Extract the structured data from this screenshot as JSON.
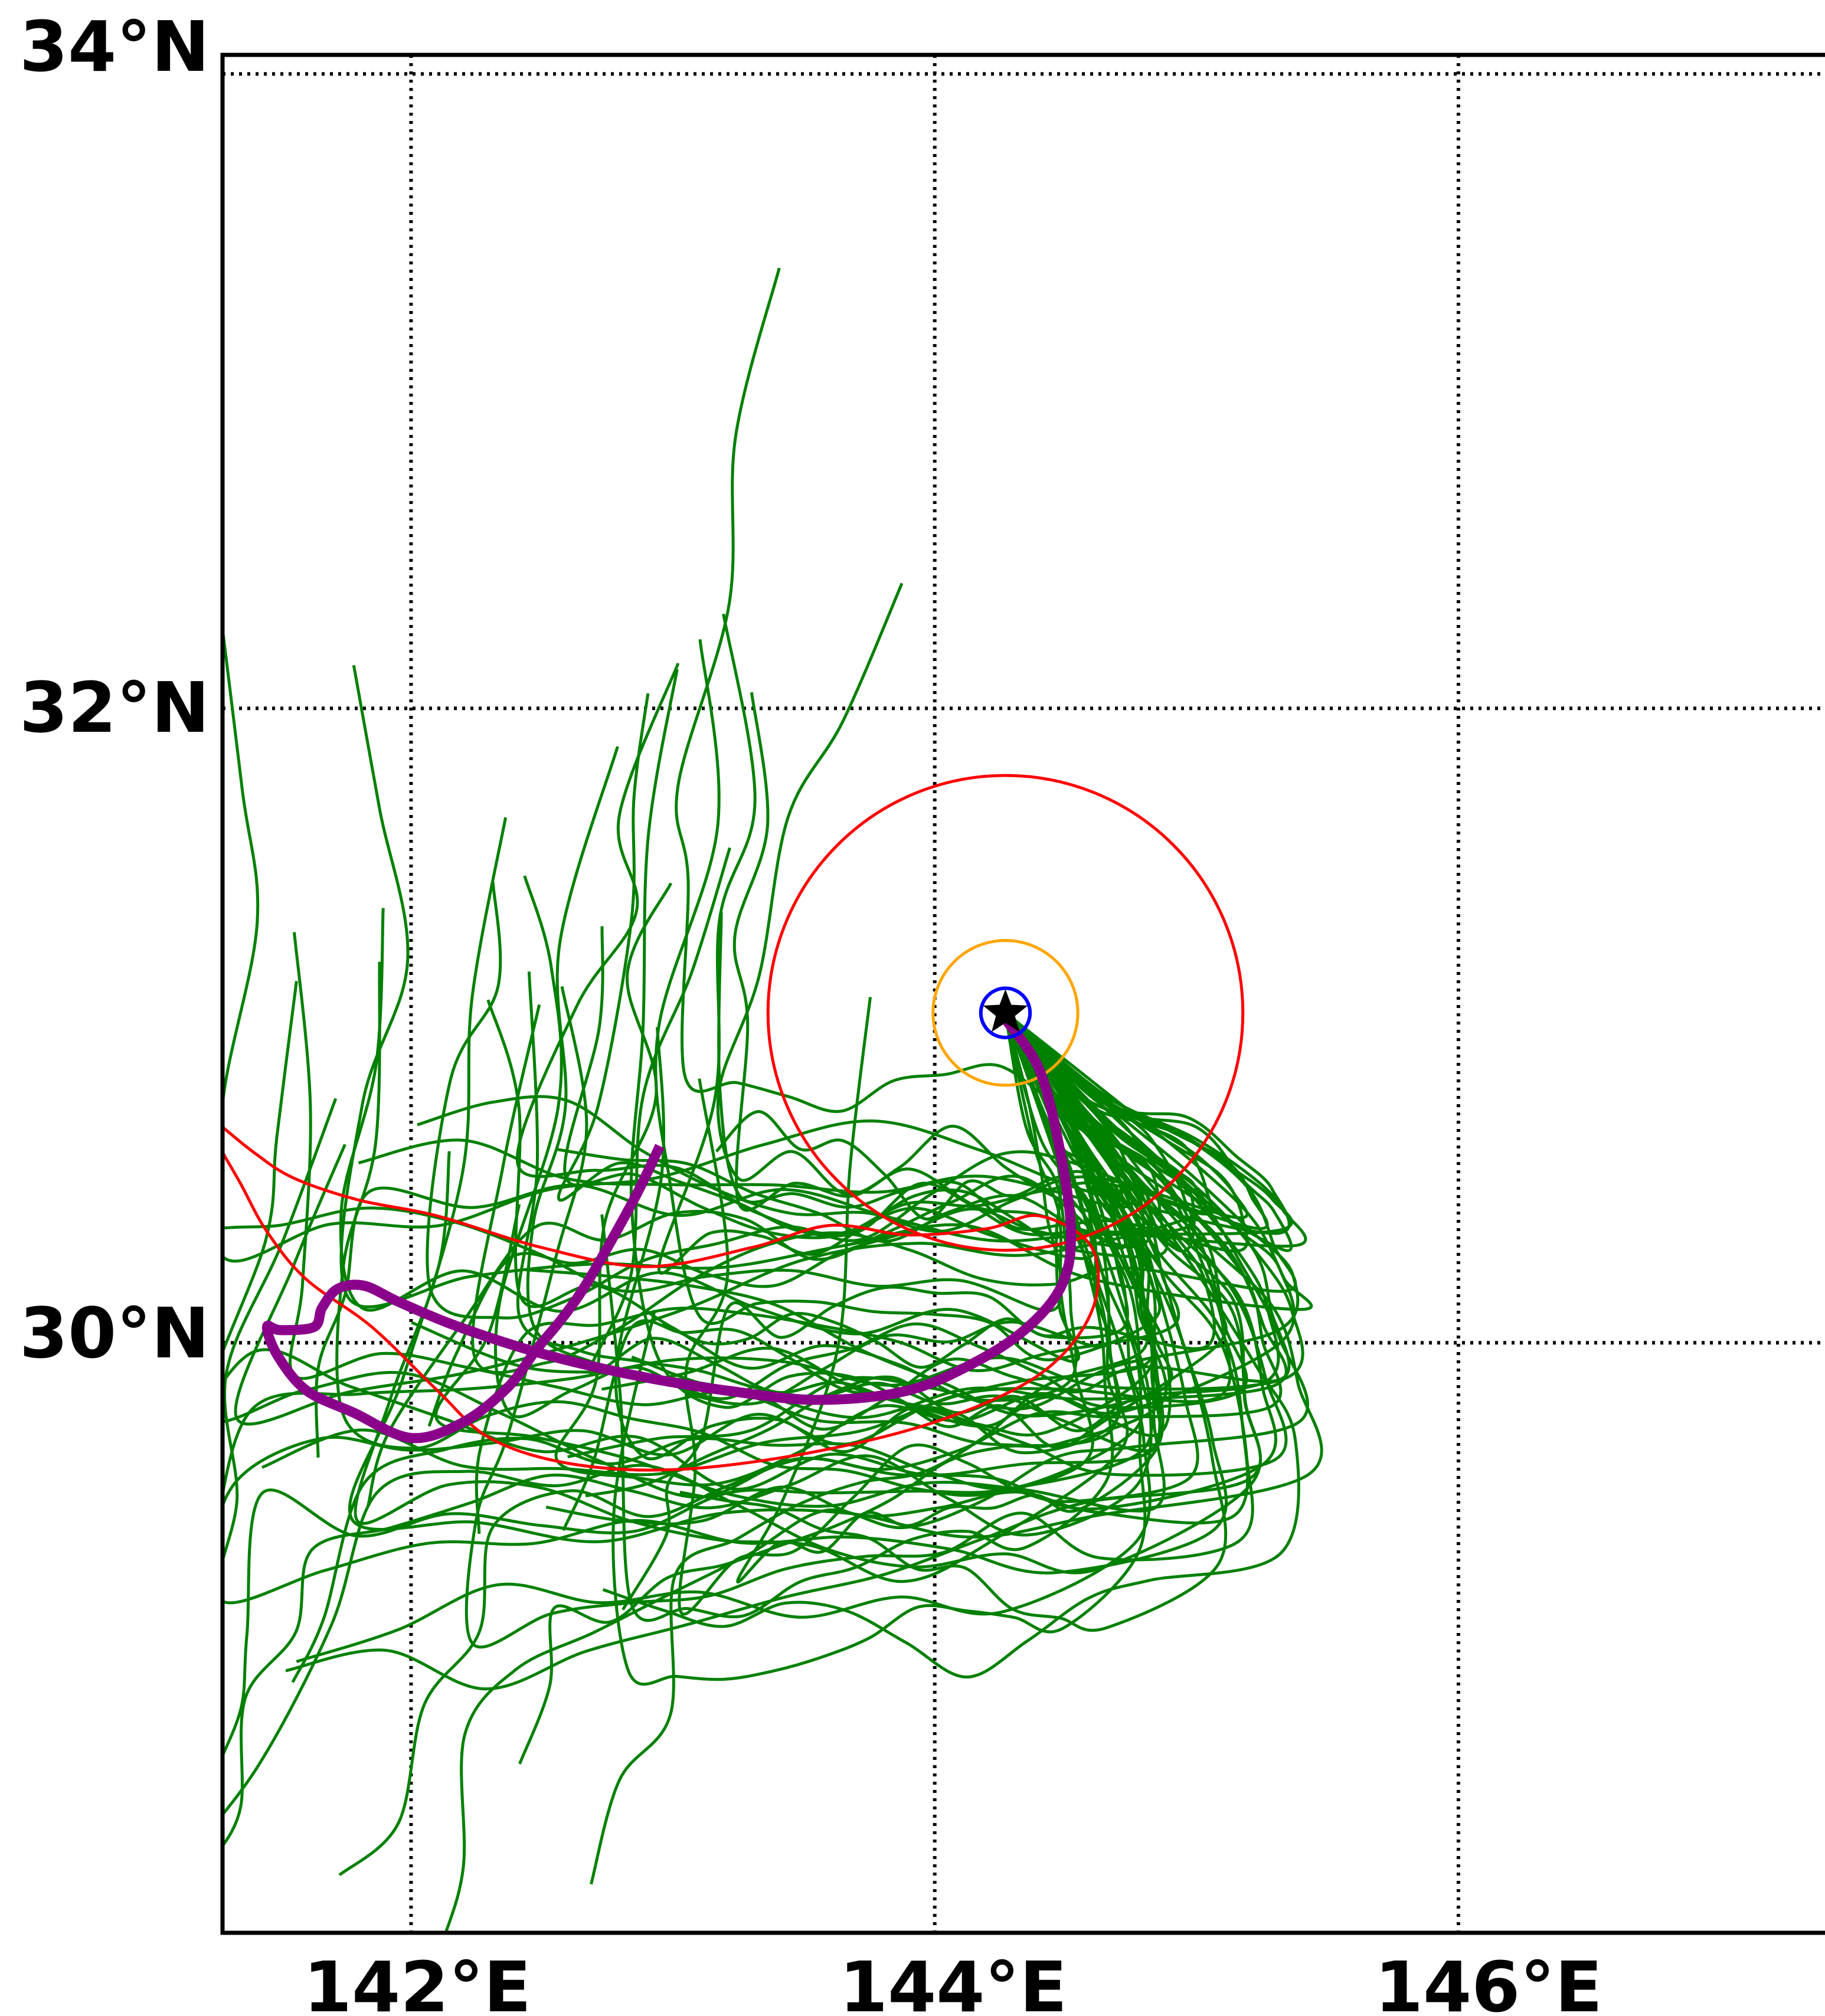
{
  "map": {
    "lon_labels": [
      {
        "lon": 142,
        "text": "142°E"
      },
      {
        "lon": 144,
        "text": "144°E"
      },
      {
        "lon": 146,
        "text": "146°E"
      }
    ],
    "lat_labels": [
      {
        "lat": 34,
        "text": "34°N"
      },
      {
        "lat": 32,
        "text": "32°N"
      },
      {
        "lat": 30,
        "text": "30°N"
      }
    ],
    "extent": {
      "lon_min": 141.28,
      "lon_max": 147.4,
      "lat_min": 28.14,
      "lat_max": 34.06
    },
    "gridlines": "dotted",
    "colors": {
      "ensemble_tracks": "#008000",
      "best_track": "#8B008B",
      "outer_circle": "#ff0000",
      "middle_circle": "#ffa500",
      "inner_circle": "#0000ff",
      "storm_marker": "#000000",
      "contour_line": "#ff0000"
    },
    "storm_center": {
      "lon": 144.27,
      "lat": 31.04,
      "icon": "star-icon"
    },
    "circles": [
      {
        "name": "outer-circle",
        "radius_deg": 0.82,
        "color": "#ff0000"
      },
      {
        "name": "middle-circle",
        "radius_deg": 0.25,
        "color": "#ffa500"
      },
      {
        "name": "inner-circle",
        "radius_deg": 0.085,
        "color": "#0000ff"
      }
    ],
    "best_track": [
      [
        144.27,
        31.02
      ],
      [
        144.4,
        30.86
      ],
      [
        144.48,
        30.6
      ],
      [
        144.52,
        30.35
      ],
      [
        144.49,
        30.19
      ],
      [
        144.37,
        30.06
      ],
      [
        144.18,
        29.95
      ],
      [
        143.9,
        29.85
      ],
      [
        143.55,
        29.82
      ],
      [
        143.2,
        29.85
      ],
      [
        142.9,
        29.89
      ],
      [
        142.62,
        29.94
      ],
      [
        142.4,
        29.99
      ],
      [
        142.15,
        30.06
      ],
      [
        141.95,
        30.13
      ],
      [
        141.82,
        30.18
      ],
      [
        141.72,
        30.17
      ],
      [
        141.66,
        30.11
      ],
      [
        141.63,
        30.05
      ],
      [
        141.5,
        30.04
      ],
      [
        141.45,
        30.05
      ],
      [
        141.49,
        29.96
      ],
      [
        141.6,
        29.85
      ],
      [
        141.78,
        29.78
      ],
      [
        142.0,
        29.7
      ],
      [
        142.2,
        29.75
      ],
      [
        142.37,
        29.86
      ],
      [
        142.48,
        29.98
      ],
      [
        142.58,
        30.08
      ],
      [
        142.68,
        30.2
      ],
      [
        142.85,
        30.45
      ],
      [
        142.95,
        30.62
      ]
    ],
    "contour_line": [
      [
        141.28,
        30.68
      ],
      [
        141.4,
        30.6
      ],
      [
        141.55,
        30.52
      ],
      [
        141.8,
        30.45
      ],
      [
        142.1,
        30.4
      ],
      [
        142.5,
        30.3
      ],
      [
        142.9,
        30.24
      ],
      [
        143.3,
        30.3
      ],
      [
        143.6,
        30.37
      ],
      [
        143.9,
        30.34
      ],
      [
        144.2,
        30.36
      ],
      [
        144.4,
        30.4
      ],
      [
        144.6,
        30.3
      ],
      [
        144.6,
        30.1
      ],
      [
        144.4,
        29.9
      ],
      [
        144.0,
        29.75
      ],
      [
        143.5,
        29.65
      ],
      [
        143.0,
        29.6
      ],
      [
        142.6,
        29.62
      ],
      [
        142.3,
        29.7
      ],
      [
        142.1,
        29.85
      ],
      [
        141.85,
        30.05
      ],
      [
        141.6,
        30.2
      ],
      [
        141.45,
        30.35
      ],
      [
        141.35,
        30.5
      ],
      [
        141.28,
        30.6
      ]
    ]
  }
}
